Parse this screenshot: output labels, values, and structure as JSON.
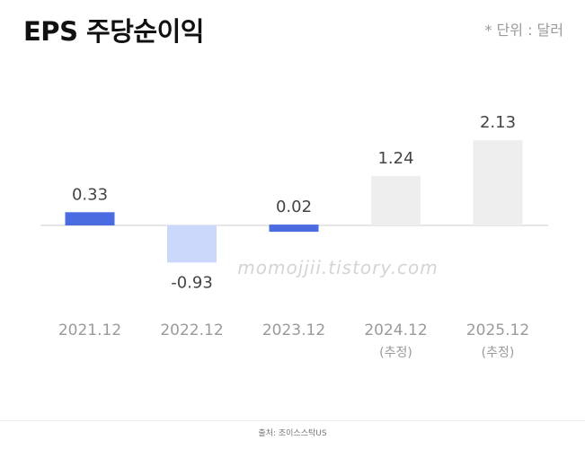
{
  "header": {
    "title": "EPS 주당순이익",
    "unit": "* 단위 : 달러"
  },
  "watermark": "momojjii.tistory.com",
  "source": "출처: 조이스스탁US",
  "colors": {
    "actual": "#4b6be0",
    "actual_negative": "#ccd8fb",
    "estimate": "#eeeeee",
    "value_label": "#444444",
    "tick_label": "#9a9a9a",
    "baseline": "#e6e6e6"
  },
  "chart_data": {
    "type": "bar",
    "title": "EPS 주당순이익",
    "categories": [
      "2021.12",
      "2022.12",
      "2023.12",
      "2024.12",
      "2025.12"
    ],
    "category_notes": [
      "",
      "",
      "",
      "(추정)",
      "(추정)"
    ],
    "values": [
      0.33,
      -0.93,
      0.02,
      1.24,
      2.13
    ],
    "value_labels": [
      "0.33",
      "-0.93",
      "0.02",
      "1.24",
      "2.13"
    ],
    "kinds": [
      "actual",
      "actual_negative",
      "actual",
      "estimate",
      "estimate"
    ],
    "unit": "달러",
    "xlabel": "",
    "ylabel": "",
    "grid": false,
    "legend": "none"
  }
}
